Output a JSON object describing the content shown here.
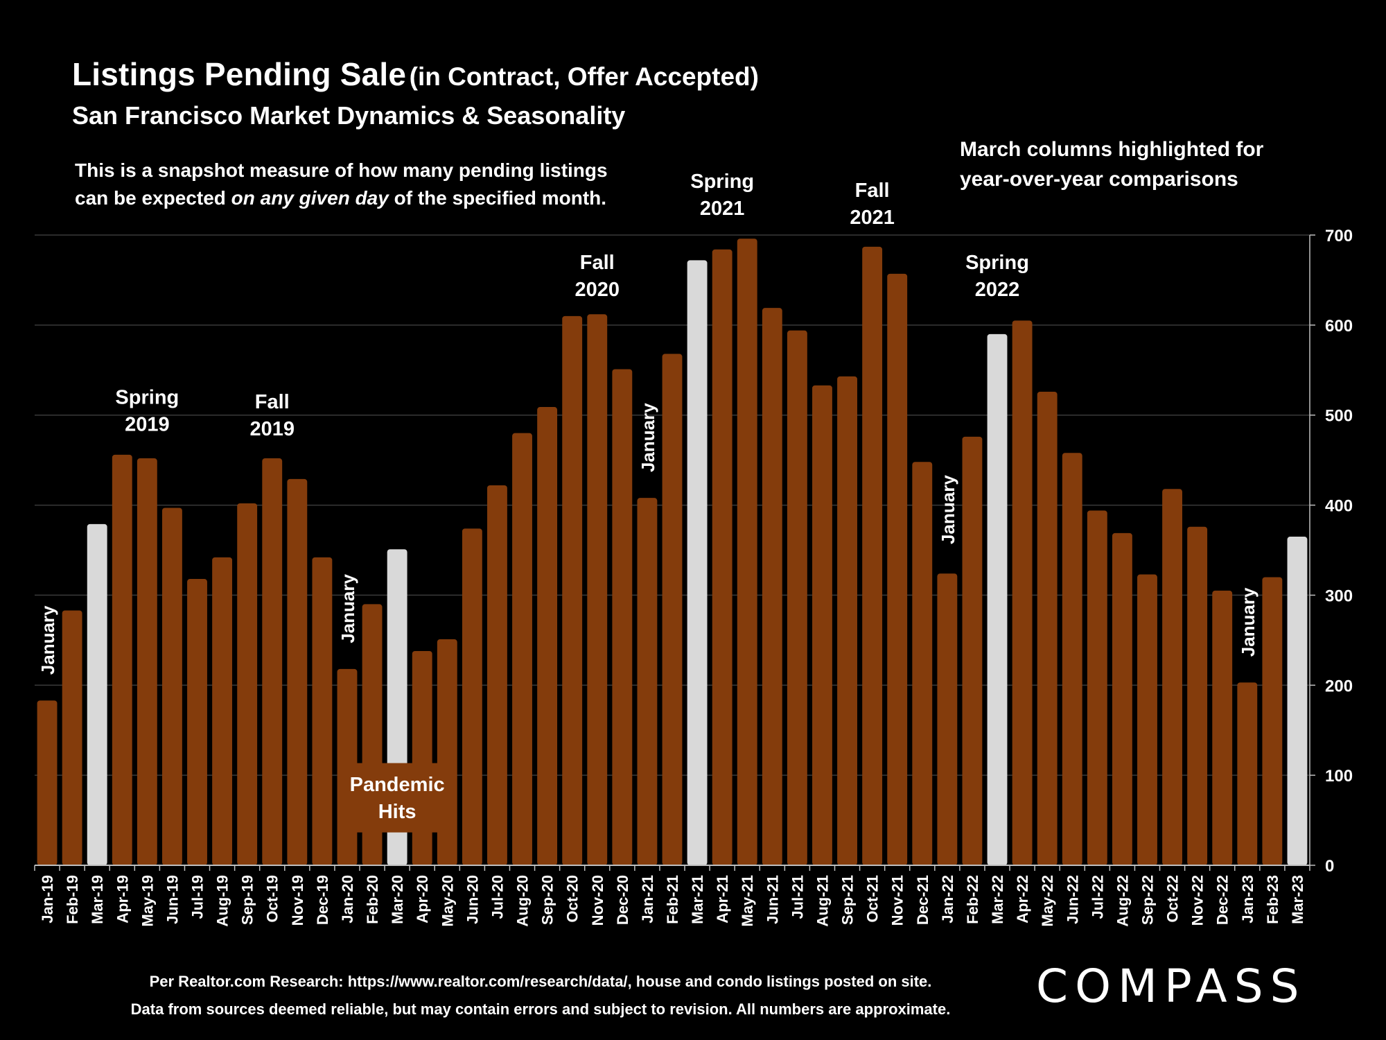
{
  "header": {
    "title": "Listings Pending Sale",
    "title_paren": "(in Contract, Offer Accepted)",
    "subtitle": "San Francisco Market Dynamics & Seasonality",
    "note_line1": "This is a snapshot measure of how many pending listings",
    "note_line2_pre": "can be expected ",
    "note_line2_em": "on any given day",
    "note_line2_post": " of the specified month.",
    "march_note_line1": "March columns highlighted for",
    "march_note_line2": "year-over-year comparisons"
  },
  "footer": {
    "line1": "Per Realtor.com Research:  https://www.realtor.com/research/data/, house and condo listings posted on site.",
    "line2": "Data from sources deemed reliable, but may contain errors and subject to revision. All numbers are approximate."
  },
  "brand": {
    "logo_text": "COMPASS"
  },
  "colors": {
    "background": "#000000",
    "bar": "#843C0C",
    "highlight_bar": "#D9D9D9",
    "gridline": "#3A3A3A",
    "text": "#FFFFFF"
  },
  "chart_data": {
    "type": "bar",
    "categories": [
      "Jan-19",
      "Feb-19",
      "Mar-19",
      "Apr-19",
      "May-19",
      "Jun-19",
      "Jul-19",
      "Aug-19",
      "Sep-19",
      "Oct-19",
      "Nov-19",
      "Dec-19",
      "Jan-20",
      "Feb-20",
      "Mar-20",
      "Apr-20",
      "May-20",
      "Jun-20",
      "Jul-20",
      "Aug-20",
      "Sep-20",
      "Oct-20",
      "Nov-20",
      "Dec-20",
      "Jan-21",
      "Feb-21",
      "Mar-21",
      "Apr-21",
      "May-21",
      "Jun-21",
      "Jul-21",
      "Aug-21",
      "Sep-21",
      "Oct-21",
      "Nov-21",
      "Dec-21",
      "Jan-22",
      "Feb-22",
      "Mar-22",
      "Apr-22",
      "May-22",
      "Jun-22",
      "Jul-22",
      "Aug-22",
      "Sep-22",
      "Oct-22",
      "Nov-22",
      "Dec-22",
      "Jan-23",
      "Feb-23",
      "Mar-23"
    ],
    "values": [
      183,
      283,
      379,
      456,
      452,
      397,
      318,
      342,
      402,
      452,
      429,
      342,
      218,
      290,
      351,
      238,
      251,
      374,
      422,
      480,
      509,
      610,
      612,
      551,
      408,
      568,
      672,
      684,
      696,
      619,
      594,
      533,
      543,
      687,
      657,
      448,
      324,
      476,
      590,
      605,
      526,
      458,
      394,
      369,
      323,
      418,
      376,
      305,
      203,
      320,
      365
    ],
    "highlighted": [
      "Mar-19",
      "Mar-20",
      "Mar-21",
      "Mar-22",
      "Mar-23"
    ],
    "ylim": [
      0,
      700
    ],
    "yticks": [
      0,
      100,
      200,
      300,
      400,
      500,
      600,
      700
    ],
    "grid": true,
    "y_axis_position": "right",
    "annotations": [
      {
        "text": "Spring\n2019",
        "category": "May-19",
        "value": 505
      },
      {
        "text": "Fall\n2019",
        "category": "Oct-19",
        "value": 500
      },
      {
        "text": "Fall\n2020",
        "category": "Nov-20",
        "value": 655
      },
      {
        "text": "Spring\n2021",
        "category": "Apr-21",
        "value": 745
      },
      {
        "text": "Fall\n2021",
        "category": "Oct-21",
        "value": 735
      },
      {
        "text": "Spring\n2022",
        "category": "Mar-22",
        "value": 655
      },
      {
        "text": "Pandemic\nHits",
        "category": "Mar-20",
        "value": 75,
        "boxed": true
      },
      {
        "text": "January",
        "category": "Jan-19",
        "value": 250,
        "rotated": true
      },
      {
        "text": "January",
        "category": "Jan-20",
        "value": 285,
        "rotated": true
      },
      {
        "text": "January",
        "category": "Jan-21",
        "value": 475,
        "rotated": true
      },
      {
        "text": "January",
        "category": "Jan-22",
        "value": 395,
        "rotated": true
      },
      {
        "text": "January",
        "category": "Jan-23",
        "value": 270,
        "rotated": true
      }
    ]
  }
}
